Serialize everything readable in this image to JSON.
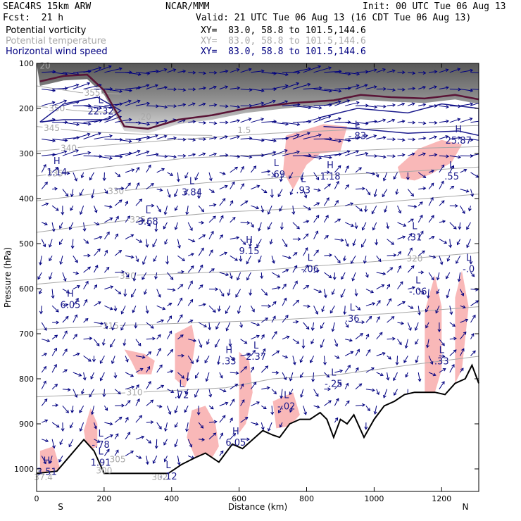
{
  "header": {
    "model": "SEAC4RS 15km ARW",
    "org": "NCAR/MMM",
    "init": "Init: 00 UTC Tue 06 Aug 13",
    "fcst": "Fcst:  21 h",
    "valid": "Valid: 21 UTC Tue 06 Aug 13 (16 CDT Tue 06 Aug 13)",
    "fields": [
      {
        "name": "Potential vorticity",
        "xy": "XY=  83.0, 58.8 to 101.5,144.6",
        "color": "#000000"
      },
      {
        "name": "Potential temperature",
        "xy": "XY=  83.0, 58.8 to 101.5,144.6",
        "color": "#a8a8a8"
      },
      {
        "name": "Horizontal wind speed",
        "xy": "XY=  83.0, 58.8 to 101.5,144.6",
        "color": "#000080"
      }
    ]
  },
  "chart_data": {
    "type": "cross-section",
    "xlabel": "Distance (km)",
    "ylabel": "Pressure (hPa)",
    "xlim": [
      0,
      1310
    ],
    "ylim": [
      1050,
      100
    ],
    "x_ticks": [
      0,
      200,
      400,
      600,
      800,
      1000,
      1200
    ],
    "y_ticks": [
      100,
      200,
      300,
      400,
      500,
      600,
      700,
      800,
      900,
      1000
    ],
    "x_end_labels": [
      "S",
      "N"
    ],
    "colors": {
      "pv": "#1a1a8c",
      "dynamic_tropopause": "#5a1436",
      "theta": "#a8a8a8",
      "wind": "#000080",
      "pink": "#f9b8b8"
    },
    "terrain": [
      [
        0,
        1010
      ],
      [
        60,
        1005
      ],
      [
        100,
        970
      ],
      [
        140,
        935
      ],
      [
        170,
        960
      ],
      [
        200,
        1010
      ],
      [
        300,
        1010
      ],
      [
        390,
        1010
      ],
      [
        430,
        990
      ],
      [
        470,
        975
      ],
      [
        500,
        965
      ],
      [
        540,
        985
      ],
      [
        580,
        945
      ],
      [
        610,
        955
      ],
      [
        640,
        935
      ],
      [
        670,
        915
      ],
      [
        700,
        925
      ],
      [
        720,
        930
      ],
      [
        750,
        900
      ],
      [
        780,
        890
      ],
      [
        810,
        890
      ],
      [
        840,
        875
      ],
      [
        860,
        890
      ],
      [
        880,
        930
      ],
      [
        900,
        890
      ],
      [
        920,
        900
      ],
      [
        940,
        880
      ],
      [
        970,
        930
      ],
      [
        1000,
        890
      ],
      [
        1030,
        860
      ],
      [
        1060,
        850
      ],
      [
        1090,
        835
      ],
      [
        1120,
        830
      ],
      [
        1150,
        830
      ],
      [
        1180,
        830
      ],
      [
        1210,
        835
      ],
      [
        1240,
        810
      ],
      [
        1270,
        800
      ],
      [
        1290,
        770
      ],
      [
        1310,
        810
      ]
    ],
    "theta_contours": [
      {
        "label": "355",
        "points": [
          [
            0,
            150
          ],
          [
            130,
            165
          ],
          [
            250,
            168
          ]
        ],
        "label_x": 165
      },
      {
        "label": "350",
        "points": [
          [
            0,
            195
          ],
          [
            120,
            205
          ],
          [
            240,
            210
          ]
        ],
        "label_x": 60
      },
      {
        "label": "345",
        "points": [
          [
            0,
            240
          ],
          [
            150,
            252
          ],
          [
            340,
            258
          ],
          [
            520,
            260
          ]
        ],
        "label_x": 45
      },
      {
        "label": "340",
        "points": [
          [
            0,
            295
          ],
          [
            150,
            285
          ],
          [
            400,
            270
          ],
          [
            700,
            255
          ],
          [
            1000,
            245
          ],
          [
            1310,
            238
          ]
        ],
        "label_x": 95
      },
      {
        "label": "335",
        "points": [
          [
            0,
            350
          ],
          [
            200,
            330
          ],
          [
            450,
            310
          ],
          [
            750,
            300
          ],
          [
            1050,
            290
          ],
          [
            1310,
            285
          ]
        ],
        "label_x": 55
      },
      {
        "label": "330",
        "points": [
          [
            0,
            405
          ],
          [
            220,
            385
          ],
          [
            500,
            365
          ],
          [
            800,
            350
          ],
          [
            1100,
            340
          ],
          [
            1310,
            330
          ]
        ],
        "label_x": 235
      },
      {
        "label": "325",
        "points": [
          [
            0,
            475
          ],
          [
            250,
            450
          ],
          [
            550,
            430
          ],
          [
            850,
            420
          ],
          [
            1150,
            400
          ],
          [
            1310,
            390
          ]
        ],
        "label_x": 300
      },
      {
        "label": "320",
        "points": [
          [
            0,
            590
          ],
          [
            300,
            570
          ],
          [
            650,
            560
          ],
          [
            1000,
            540
          ],
          [
            1310,
            520
          ]
        ],
        "label_x": 270
      },
      {
        "label": "315",
        "points": [
          [
            0,
            690
          ],
          [
            300,
            680
          ],
          [
            700,
            670
          ],
          [
            1050,
            655
          ],
          [
            1310,
            640
          ]
        ],
        "label_x": 220
      },
      {
        "label": "310",
        "points": [
          [
            0,
            840
          ],
          [
            300,
            830
          ],
          [
            560,
            820
          ],
          [
            700,
            800
          ],
          [
            900,
            790
          ],
          [
            1100,
            770
          ],
          [
            1310,
            750
          ]
        ],
        "label_x": 290
      }
    ],
    "tropopause": [
      [
        10,
        140
      ],
      [
        80,
        128
      ],
      [
        150,
        125
      ],
      [
        200,
        160
      ],
      [
        260,
        240
      ],
      [
        330,
        245
      ],
      [
        420,
        225
      ],
      [
        520,
        215
      ],
      [
        620,
        200
      ],
      [
        760,
        188
      ],
      [
        880,
        182
      ],
      [
        960,
        170
      ],
      [
        1050,
        175
      ],
      [
        1150,
        178
      ],
      [
        1240,
        170
      ],
      [
        1310,
        180
      ]
    ],
    "pv_contours_upper": [
      {
        "points": [
          [
            10,
            230
          ],
          [
            80,
            190
          ],
          [
            180,
            175
          ],
          [
            250,
            205
          ],
          [
            210,
            225
          ],
          [
            80,
            225
          ],
          [
            10,
            230
          ]
        ]
      },
      {
        "points": [
          [
            840,
            220
          ],
          [
            950,
            200
          ],
          [
            1100,
            210
          ],
          [
            1200,
            190
          ],
          [
            1310,
            200
          ],
          [
            1310,
            260
          ],
          [
            1250,
            250
          ],
          [
            1100,
            255
          ],
          [
            950,
            245
          ],
          [
            850,
            240
          ]
        ]
      }
    ],
    "pink_regions": [
      [
        [
          740,
          260
        ],
        [
          850,
          235
        ],
        [
          920,
          240
        ],
        [
          900,
          295
        ],
        [
          840,
          300
        ],
        [
          800,
          325
        ],
        [
          760,
          380
        ],
        [
          730,
          340
        ]
      ],
      [
        [
          1070,
          330
        ],
        [
          1130,
          290
        ],
        [
          1200,
          270
        ],
        [
          1260,
          280
        ],
        [
          1230,
          320
        ],
        [
          1170,
          345
        ],
        [
          1120,
          360
        ],
        [
          1080,
          355
        ]
      ],
      [
        [
          260,
          735
        ],
        [
          320,
          745
        ],
        [
          350,
          760
        ],
        [
          340,
          790
        ],
        [
          300,
          790
        ],
        [
          280,
          760
        ]
      ],
      [
        [
          410,
          700
        ],
        [
          460,
          680
        ],
        [
          470,
          720
        ],
        [
          460,
          770
        ],
        [
          440,
          820
        ],
        [
          410,
          800
        ]
      ],
      [
        [
          160,
          865
        ],
        [
          180,
          900
        ],
        [
          180,
          950
        ],
        [
          150,
          960
        ],
        [
          140,
          915
        ]
      ],
      [
        [
          460,
          870
        ],
        [
          500,
          860
        ],
        [
          530,
          900
        ],
        [
          540,
          950
        ],
        [
          520,
          975
        ],
        [
          470,
          975
        ],
        [
          445,
          930
        ]
      ],
      [
        [
          600,
          740
        ],
        [
          630,
          760
        ],
        [
          640,
          830
        ],
        [
          620,
          900
        ],
        [
          600,
          920
        ]
      ],
      [
        [
          700,
          850
        ],
        [
          760,
          830
        ],
        [
          780,
          880
        ],
        [
          750,
          905
        ],
        [
          710,
          910
        ]
      ],
      [
        [
          1150,
          650
        ],
        [
          1180,
          570
        ],
        [
          1200,
          640
        ],
        [
          1200,
          780
        ],
        [
          1180,
          830
        ],
        [
          1150,
          830
        ]
      ],
      [
        [
          1240,
          620
        ],
        [
          1260,
          560
        ],
        [
          1280,
          640
        ],
        [
          1260,
          780
        ],
        [
          1240,
          810
        ]
      ],
      [
        [
          10,
          960
        ],
        [
          50,
          950
        ],
        [
          70,
          1000
        ],
        [
          10,
          1010
        ]
      ]
    ],
    "pv_labels": [
      {
        "type": "L",
        "value": "22.32",
        "x": 190,
        "p": 210
      },
      {
        "type": "H",
        "value": "1.14",
        "x": 60,
        "p": 345
      },
      {
        "type": "L",
        "value": "3.84",
        "x": 460,
        "p": 390
      },
      {
        "type": "L",
        "value": "3.68",
        "x": 330,
        "p": 455
      },
      {
        "type": "H",
        "value": "9.15",
        "x": 630,
        "p": 520
      },
      {
        "type": "L",
        "value": "-.69",
        "x": 710,
        "p": 350
      },
      {
        "type": "L",
        "value": ".93",
        "x": 790,
        "p": 385
      },
      {
        "type": "H",
        "value": "1.18",
        "x": 870,
        "p": 355
      },
      {
        "type": "L",
        "value": "-.06",
        "x": 810,
        "p": 560
      },
      {
        "type": "H",
        "value": "6.05",
        "x": 100,
        "p": 640
      },
      {
        "type": "L",
        "value": ".36",
        "x": 935,
        "p": 670
      },
      {
        "type": "L",
        "value": "-.06",
        "x": 1130,
        "p": 610
      },
      {
        "type": "L",
        "value": ".31",
        "x": 1120,
        "p": 490
      },
      {
        "type": "H",
        "value": "25.87",
        "x": 1250,
        "p": 275
      },
      {
        "type": "L",
        "value": ".55",
        "x": 1230,
        "p": 355
      },
      {
        "type": "L",
        "value": "-.83",
        "x": 950,
        "p": 265
      },
      {
        "type": "H",
        "value": ".33",
        "x": 570,
        "p": 765
      },
      {
        "type": "L",
        "value": "2.37",
        "x": 650,
        "p": 755
      },
      {
        "type": "L",
        "value": ".72",
        "x": 430,
        "p": 840
      },
      {
        "type": "L",
        "value": "-.02",
        "x": 740,
        "p": 865
      },
      {
        "type": "L",
        "value": "-.25",
        "x": 880,
        "p": 815
      },
      {
        "type": "L",
        "value": ".33",
        "x": 1200,
        "p": 765
      },
      {
        "type": "H",
        "value": "6.05",
        "x": 590,
        "p": 945
      },
      {
        "type": "H",
        "value": "3.51",
        "x": 30,
        "p": 1010
      },
      {
        "type": "L",
        "value": "-.78",
        "x": 190,
        "p": 950
      },
      {
        "type": "L",
        "value": "1.91",
        "x": 190,
        "p": 990
      },
      {
        "type": "L",
        "value": "-.12",
        "x": 390,
        "p": 1020
      },
      {
        "type": "L",
        "value": "-.0",
        "x": 1280,
        "p": 560
      }
    ],
    "theta_small_labels": [
      {
        "value": "320",
        "x": 1120,
        "p": 540
      },
      {
        "value": "300",
        "x": 200,
        "p": 1010
      },
      {
        "value": "305",
        "x": 240,
        "p": 985
      },
      {
        "value": "302",
        "x": 365,
        "p": 1025
      },
      {
        "value": "37.4",
        "x": 20,
        "p": 1025
      },
      {
        "value": ".20",
        "x": 320,
        "p": 225
      },
      {
        "value": "20",
        "x": 25,
        "p": 112
      },
      {
        "value": "1.5",
        "x": 615,
        "p": 255
      }
    ]
  }
}
